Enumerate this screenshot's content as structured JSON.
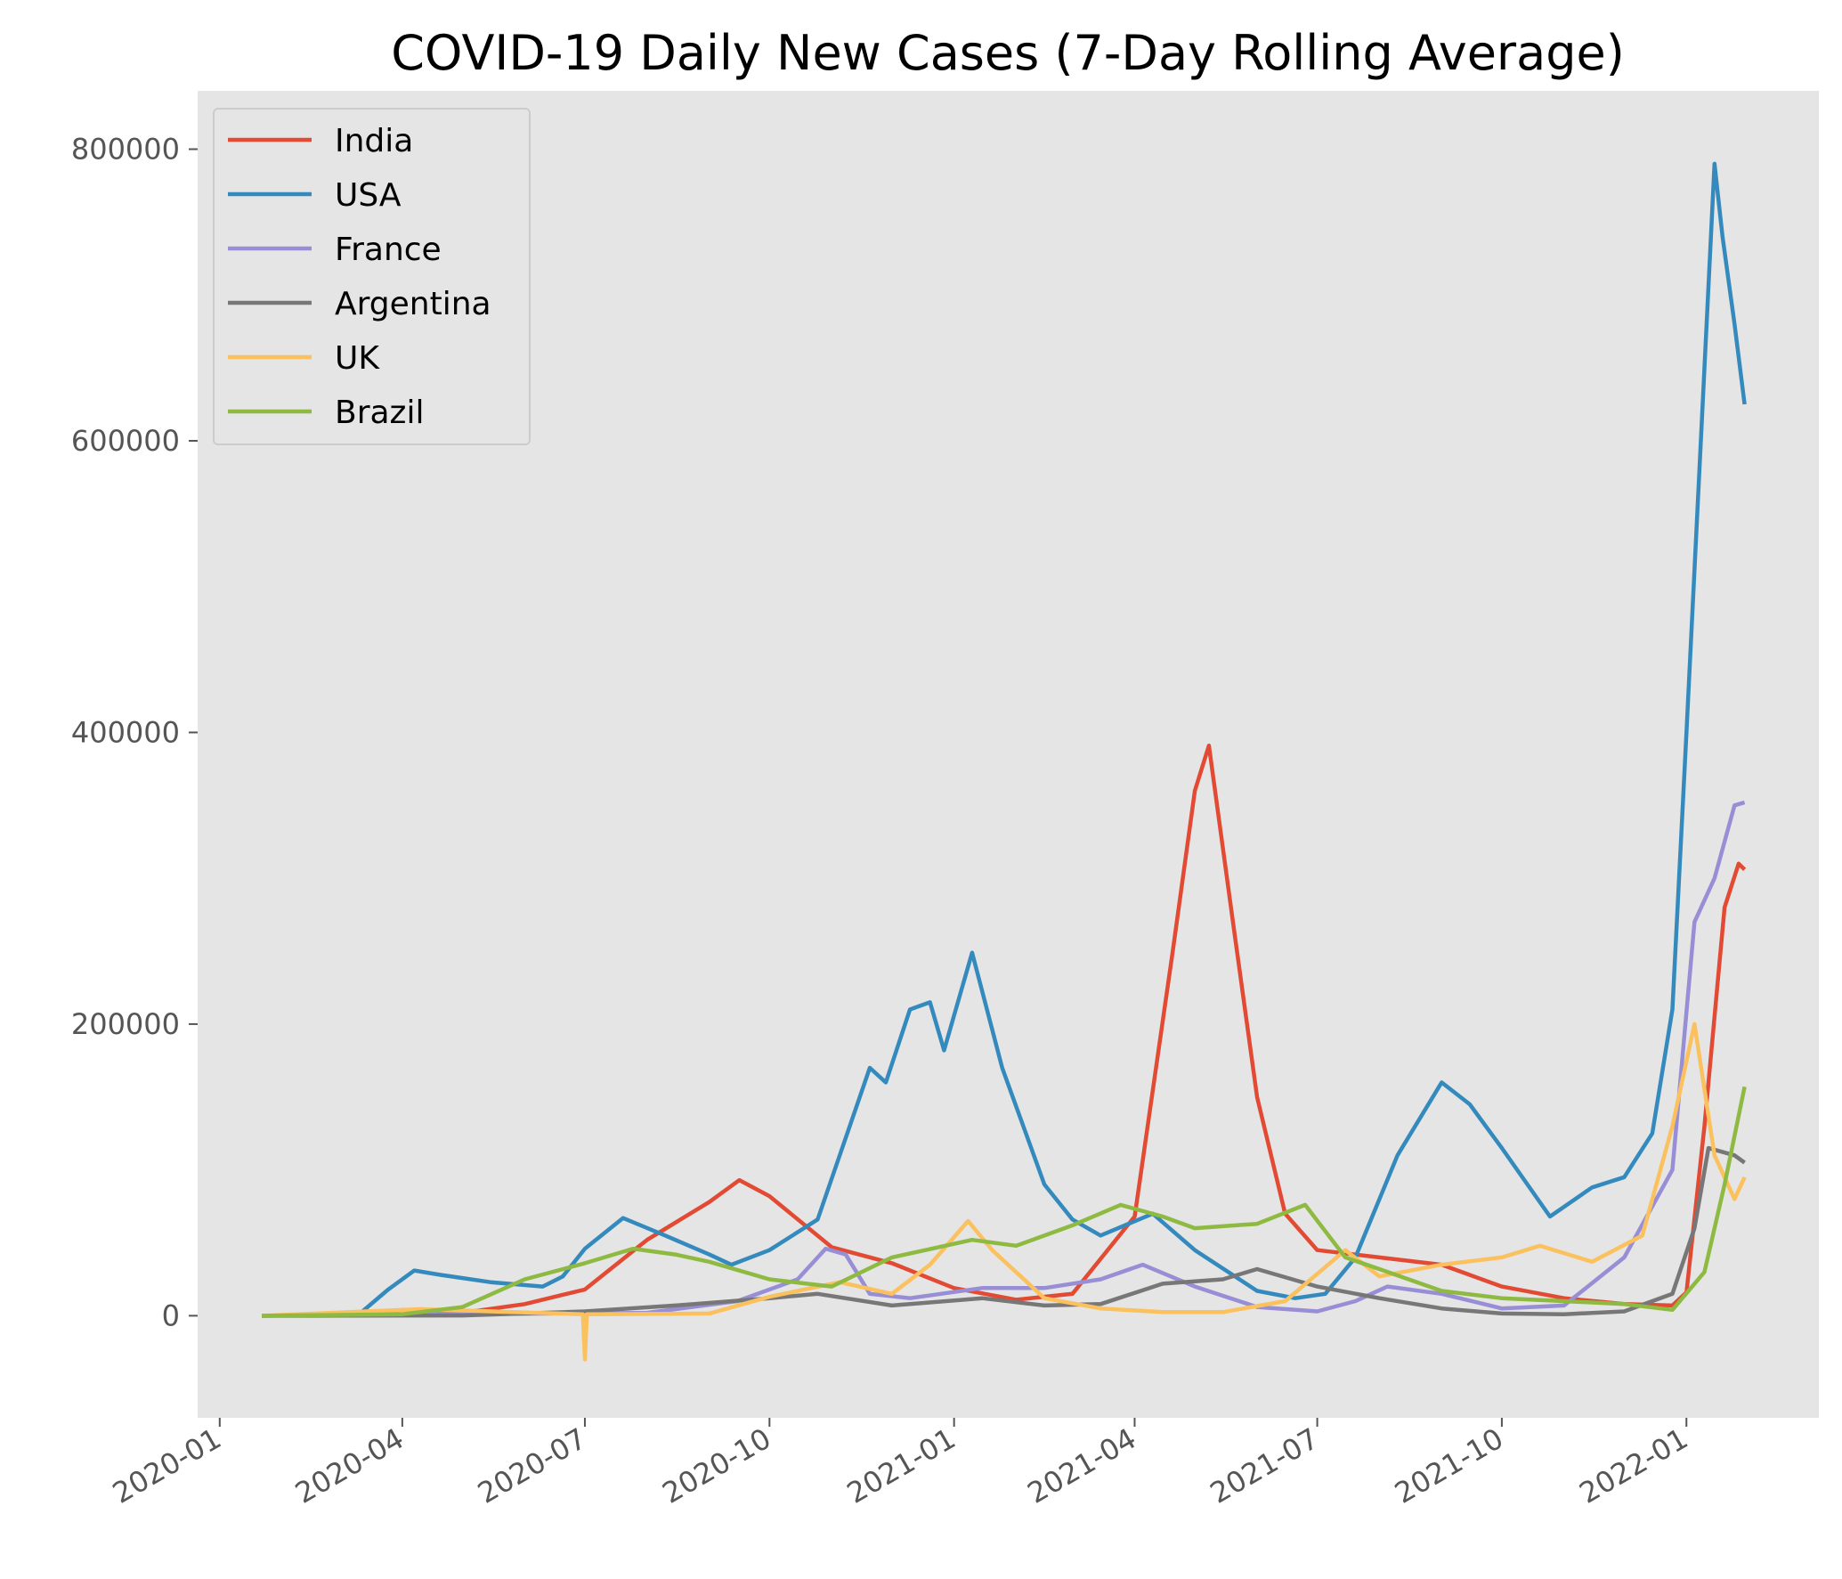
{
  "chart_data": {
    "type": "line",
    "title": "COVID-19 Daily New Cases (7-Day Rolling Average)",
    "xlabel": "",
    "ylabel": "",
    "xlim": [
      "2019-12-21",
      "2022-03-08"
    ],
    "ylim": [
      -70000,
      840000
    ],
    "x_ticks": [
      "2020-01",
      "2020-04",
      "2020-07",
      "2020-10",
      "2021-01",
      "2021-04",
      "2021-07",
      "2021-10",
      "2022-01"
    ],
    "y_ticks": [
      0,
      200000,
      400000,
      600000,
      800000
    ],
    "grid": false,
    "legend_position": "top-left",
    "colors": {
      "background": "#e5e5e5",
      "India": "#e24a33",
      "USA": "#348abd",
      "France": "#988ed5",
      "Argentina": "#777777",
      "UK": "#fbc15e",
      "Brazil": "#8eba42"
    },
    "series": [
      {
        "name": "India",
        "points": [
          [
            "2020-01-22",
            0
          ],
          [
            "2020-03-15",
            100
          ],
          [
            "2020-04-01",
            500
          ],
          [
            "2020-05-01",
            2000
          ],
          [
            "2020-06-01",
            8000
          ],
          [
            "2020-07-01",
            18000
          ],
          [
            "2020-08-01",
            52000
          ],
          [
            "2020-09-01",
            78000
          ],
          [
            "2020-09-16",
            93000
          ],
          [
            "2020-10-01",
            82000
          ],
          [
            "2020-11-01",
            47000
          ],
          [
            "2020-12-01",
            36000
          ],
          [
            "2021-01-01",
            19000
          ],
          [
            "2021-02-01",
            11000
          ],
          [
            "2021-03-01",
            15000
          ],
          [
            "2021-04-01",
            68000
          ],
          [
            "2021-04-20",
            250000
          ],
          [
            "2021-05-01",
            360000
          ],
          [
            "2021-05-08",
            391000
          ],
          [
            "2021-05-20",
            270000
          ],
          [
            "2021-06-01",
            150000
          ],
          [
            "2021-06-15",
            70000
          ],
          [
            "2021-07-01",
            45000
          ],
          [
            "2021-08-01",
            40000
          ],
          [
            "2021-09-01",
            35000
          ],
          [
            "2021-10-01",
            20000
          ],
          [
            "2021-11-01",
            12000
          ],
          [
            "2021-12-01",
            8000
          ],
          [
            "2021-12-25",
            7000
          ],
          [
            "2022-01-01",
            16000
          ],
          [
            "2022-01-10",
            130000
          ],
          [
            "2022-01-20",
            280000
          ],
          [
            "2022-01-27",
            310000
          ],
          [
            "2022-01-30",
            306000
          ]
        ]
      },
      {
        "name": "USA",
        "points": [
          [
            "2020-01-22",
            0
          ],
          [
            "2020-03-10",
            500
          ],
          [
            "2020-03-25",
            18000
          ],
          [
            "2020-04-07",
            31000
          ],
          [
            "2020-04-20",
            28000
          ],
          [
            "2020-05-15",
            23000
          ],
          [
            "2020-06-10",
            20000
          ],
          [
            "2020-06-20",
            27000
          ],
          [
            "2020-07-01",
            46000
          ],
          [
            "2020-07-20",
            67000
          ],
          [
            "2020-08-10",
            55000
          ],
          [
            "2020-09-01",
            42000
          ],
          [
            "2020-09-12",
            35000
          ],
          [
            "2020-10-01",
            45000
          ],
          [
            "2020-10-25",
            66000
          ],
          [
            "2020-11-07",
            118000
          ],
          [
            "2020-11-20",
            170000
          ],
          [
            "2020-11-28",
            160000
          ],
          [
            "2020-12-10",
            210000
          ],
          [
            "2020-12-20",
            215000
          ],
          [
            "2020-12-27",
            182000
          ],
          [
            "2021-01-10",
            249000
          ],
          [
            "2021-01-25",
            170000
          ],
          [
            "2021-02-15",
            90000
          ],
          [
            "2021-03-01",
            66000
          ],
          [
            "2021-03-15",
            55000
          ],
          [
            "2021-04-10",
            70000
          ],
          [
            "2021-05-01",
            45000
          ],
          [
            "2021-06-01",
            17000
          ],
          [
            "2021-06-20",
            12000
          ],
          [
            "2021-07-05",
            15000
          ],
          [
            "2021-07-20",
            40000
          ],
          [
            "2021-08-10",
            110000
          ],
          [
            "2021-09-01",
            160000
          ],
          [
            "2021-09-15",
            145000
          ],
          [
            "2021-10-01",
            115000
          ],
          [
            "2021-10-25",
            68000
          ],
          [
            "2021-11-15",
            88000
          ],
          [
            "2021-12-01",
            95000
          ],
          [
            "2021-12-15",
            125000
          ],
          [
            "2021-12-25",
            210000
          ],
          [
            "2022-01-01",
            400000
          ],
          [
            "2022-01-10",
            650000
          ],
          [
            "2022-01-15",
            790000
          ],
          [
            "2022-01-19",
            740000
          ],
          [
            "2022-01-25",
            680000
          ],
          [
            "2022-01-30",
            625000
          ]
        ]
      },
      {
        "name": "France",
        "points": [
          [
            "2020-01-22",
            0
          ],
          [
            "2020-03-15",
            500
          ],
          [
            "2020-04-01",
            4000
          ],
          [
            "2020-05-01",
            1000
          ],
          [
            "2020-08-01",
            2000
          ],
          [
            "2020-09-15",
            10000
          ],
          [
            "2020-10-15",
            25000
          ],
          [
            "2020-10-29",
            46000
          ],
          [
            "2020-11-08",
            42000
          ],
          [
            "2020-11-20",
            15000
          ],
          [
            "2020-12-10",
            12000
          ],
          [
            "2021-01-15",
            19000
          ],
          [
            "2021-02-15",
            19000
          ],
          [
            "2021-03-15",
            25000
          ],
          [
            "2021-04-05",
            35000
          ],
          [
            "2021-05-01",
            20000
          ],
          [
            "2021-06-01",
            6000
          ],
          [
            "2021-07-01",
            3000
          ],
          [
            "2021-07-20",
            10000
          ],
          [
            "2021-08-05",
            20000
          ],
          [
            "2021-09-01",
            15000
          ],
          [
            "2021-10-01",
            5000
          ],
          [
            "2021-11-01",
            7000
          ],
          [
            "2021-12-01",
            40000
          ],
          [
            "2021-12-25",
            100000
          ],
          [
            "2022-01-05",
            270000
          ],
          [
            "2022-01-15",
            300000
          ],
          [
            "2022-01-25",
            350000
          ],
          [
            "2022-01-30",
            352000
          ]
        ]
      },
      {
        "name": "Argentina",
        "points": [
          [
            "2020-01-22",
            0
          ],
          [
            "2020-05-01",
            200
          ],
          [
            "2020-07-01",
            3000
          ],
          [
            "2020-08-15",
            7000
          ],
          [
            "2020-10-01",
            12000
          ],
          [
            "2020-10-25",
            15000
          ],
          [
            "2020-12-01",
            7000
          ],
          [
            "2021-01-15",
            12000
          ],
          [
            "2021-02-15",
            7000
          ],
          [
            "2021-03-15",
            8000
          ],
          [
            "2021-04-15",
            22000
          ],
          [
            "2021-05-15",
            25000
          ],
          [
            "2021-06-01",
            32000
          ],
          [
            "2021-07-01",
            20000
          ],
          [
            "2021-08-01",
            12000
          ],
          [
            "2021-09-01",
            5000
          ],
          [
            "2021-10-01",
            1500
          ],
          [
            "2021-11-01",
            1000
          ],
          [
            "2021-12-01",
            3000
          ],
          [
            "2021-12-25",
            15000
          ],
          [
            "2022-01-05",
            60000
          ],
          [
            "2022-01-12",
            115000
          ],
          [
            "2022-01-25",
            110000
          ],
          [
            "2022-01-30",
            105000
          ]
        ]
      },
      {
        "name": "UK",
        "points": [
          [
            "2020-01-22",
            0
          ],
          [
            "2020-04-10",
            4500
          ],
          [
            "2020-05-15",
            3000
          ],
          [
            "2020-06-30",
            1000
          ],
          [
            "2020-07-01",
            -30000
          ],
          [
            "2020-07-02",
            1000
          ],
          [
            "2020-09-01",
            1500
          ],
          [
            "2020-10-01",
            13000
          ],
          [
            "2020-11-05",
            23000
          ],
          [
            "2020-12-01",
            15000
          ],
          [
            "2020-12-20",
            35000
          ],
          [
            "2021-01-08",
            65000
          ],
          [
            "2021-01-20",
            45000
          ],
          [
            "2021-02-15",
            12000
          ],
          [
            "2021-03-15",
            5000
          ],
          [
            "2021-04-15",
            2500
          ],
          [
            "2021-05-15",
            2500
          ],
          [
            "2021-06-15",
            10000
          ],
          [
            "2021-07-15",
            45000
          ],
          [
            "2021-08-01",
            27000
          ],
          [
            "2021-09-01",
            35000
          ],
          [
            "2021-10-01",
            40000
          ],
          [
            "2021-10-20",
            48000
          ],
          [
            "2021-11-15",
            37000
          ],
          [
            "2021-12-10",
            55000
          ],
          [
            "2021-12-25",
            130000
          ],
          [
            "2022-01-05",
            200000
          ],
          [
            "2022-01-15",
            110000
          ],
          [
            "2022-01-25",
            80000
          ],
          [
            "2022-01-30",
            95000
          ]
        ]
      },
      {
        "name": "Brazil",
        "points": [
          [
            "2020-01-22",
            0
          ],
          [
            "2020-04-01",
            1000
          ],
          [
            "2020-05-01",
            6000
          ],
          [
            "2020-06-01",
            25000
          ],
          [
            "2020-07-01",
            36000
          ],
          [
            "2020-07-25",
            46000
          ],
          [
            "2020-08-15",
            42000
          ],
          [
            "2020-09-01",
            37000
          ],
          [
            "2020-10-01",
            25000
          ],
          [
            "2020-11-01",
            20000
          ],
          [
            "2020-12-01",
            40000
          ],
          [
            "2021-01-10",
            52000
          ],
          [
            "2021-02-01",
            48000
          ],
          [
            "2021-03-01",
            62000
          ],
          [
            "2021-03-25",
            76000
          ],
          [
            "2021-04-15",
            68000
          ],
          [
            "2021-05-01",
            60000
          ],
          [
            "2021-06-01",
            63000
          ],
          [
            "2021-06-25",
            76000
          ],
          [
            "2021-07-15",
            40000
          ],
          [
            "2021-08-01",
            32000
          ],
          [
            "2021-09-01",
            17000
          ],
          [
            "2021-10-01",
            12000
          ],
          [
            "2021-11-01",
            10000
          ],
          [
            "2021-12-01",
            8000
          ],
          [
            "2021-12-25",
            4000
          ],
          [
            "2022-01-10",
            30000
          ],
          [
            "2022-01-20",
            90000
          ],
          [
            "2022-01-30",
            157000
          ]
        ]
      }
    ]
  }
}
